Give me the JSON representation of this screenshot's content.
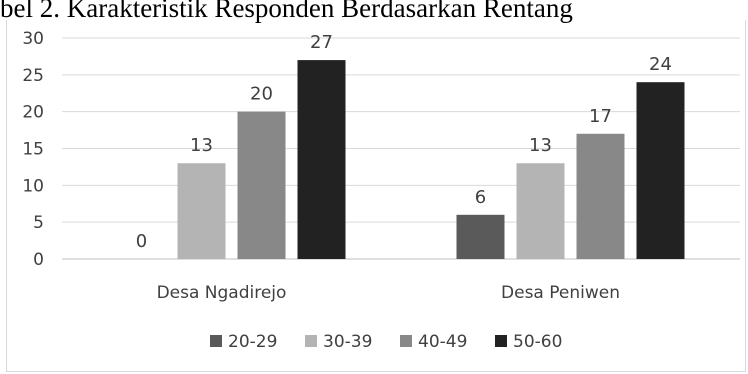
{
  "caption": "bel 2. Karakteristik Responden Berdasarkan Rentang",
  "chart_data": {
    "type": "bar",
    "categories": [
      "Desa Ngadirejo",
      "Desa Peniwen"
    ],
    "series": [
      {
        "name": "20-29",
        "values": [
          0,
          6
        ],
        "color": "#5a5a5a"
      },
      {
        "name": "30-39",
        "values": [
          13,
          13
        ],
        "color": "#b4b4b4"
      },
      {
        "name": "40-49",
        "values": [
          20,
          17
        ],
        "color": "#888888"
      },
      {
        "name": "50-60",
        "values": [
          27,
          24
        ],
        "color": "#222222"
      }
    ],
    "yticks": [
      "0",
      "5",
      "10",
      "15",
      "20",
      "25",
      "30"
    ],
    "ylim": [
      0,
      30
    ],
    "grid": true,
    "legend_position": "bottom"
  }
}
